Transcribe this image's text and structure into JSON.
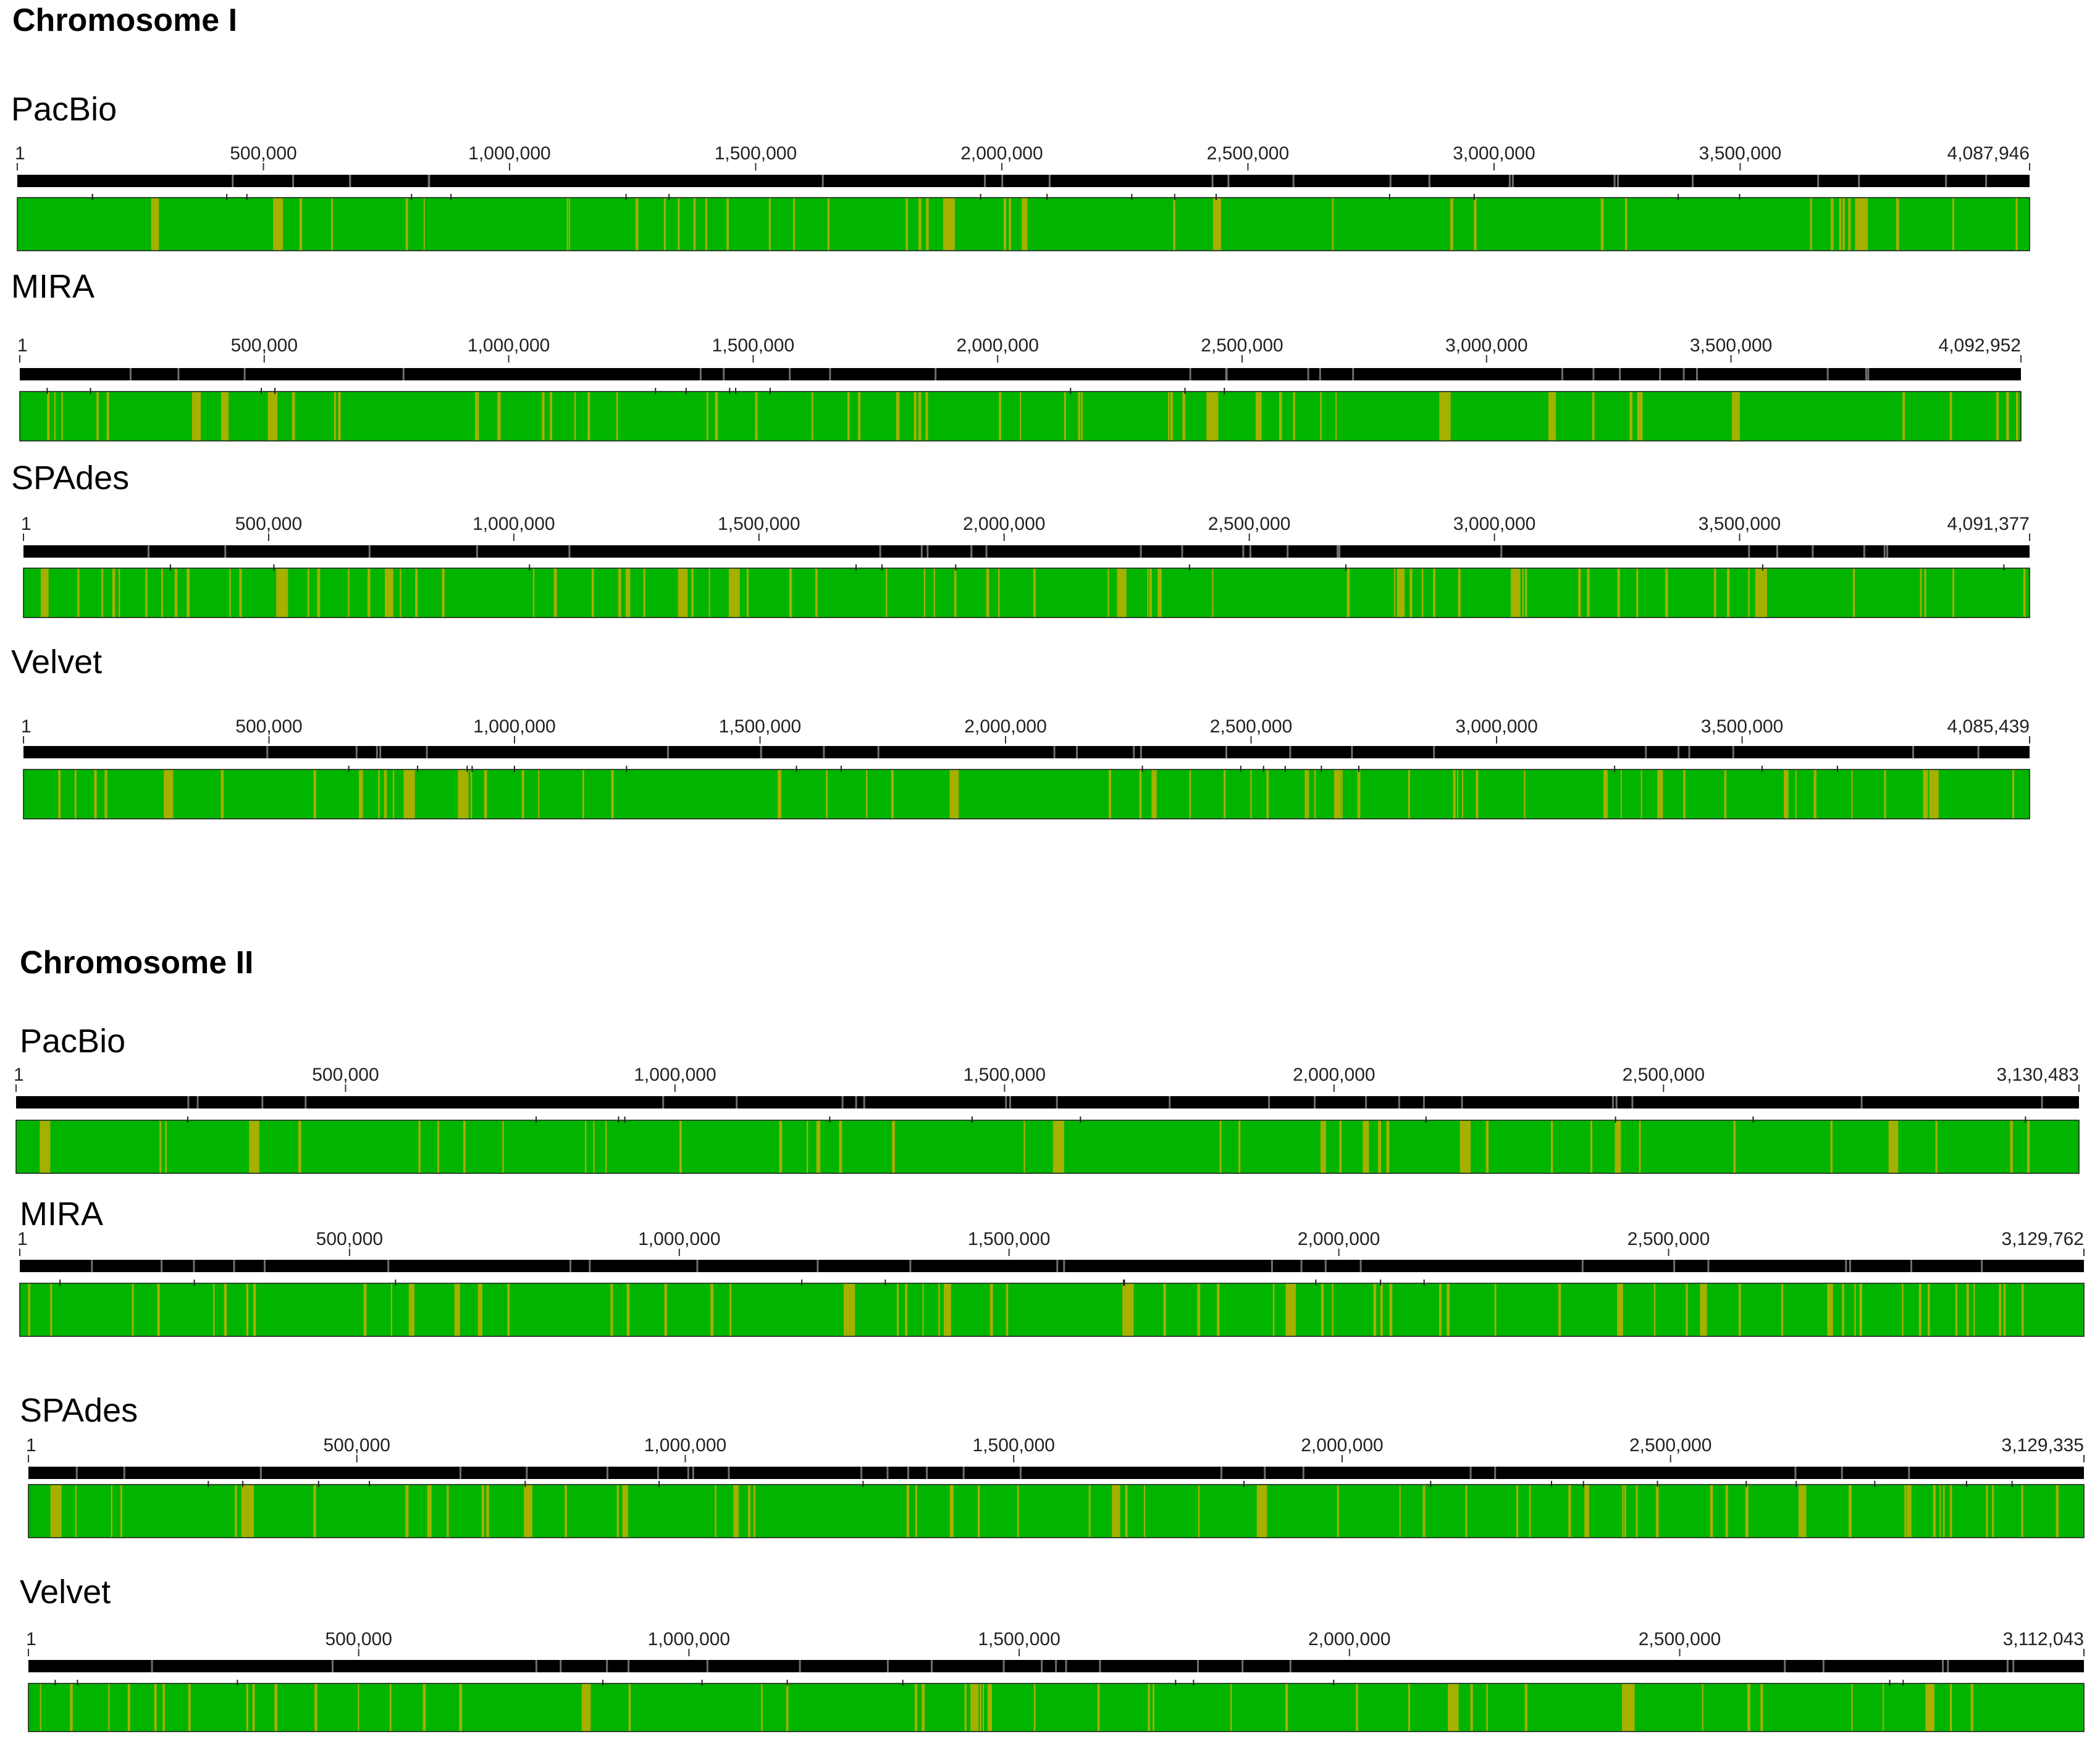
{
  "colors": {
    "background": "#ffffff",
    "ruler": "#000000",
    "gap_mark": "#6e6e6e",
    "similarity_high": "#00b400",
    "similarity_low": "#a5b000",
    "block_outline": "#1a1a1a"
  },
  "panels": [
    {
      "title": "Chromosome I",
      "tracks": [
        {
          "name": "PacBio",
          "length": 4087946,
          "tick_labels": [
            "1",
            "500,000",
            "1,000,000",
            "1,500,000",
            "2,000,000",
            "2,500,000",
            "3,000,000",
            "3,500,000",
            "4,087,946"
          ],
          "tick_values": [
            1,
            500000,
            1000000,
            1500000,
            2000000,
            2500000,
            3000000,
            3500000,
            4087946
          ]
        },
        {
          "name": "MIRA",
          "length": 4092952,
          "tick_labels": [
            "1",
            "500,000",
            "1,000,000",
            "1,500,000",
            "2,000,000",
            "2,500,000",
            "3,000,000",
            "3,500,000",
            "4,092,952"
          ],
          "tick_values": [
            1,
            500000,
            1000000,
            1500000,
            2000000,
            2500000,
            3000000,
            3500000,
            4092952
          ]
        },
        {
          "name": "SPAdes",
          "length": 4091377,
          "tick_labels": [
            "1",
            "500,000",
            "1,000,000",
            "1,500,000",
            "2,000,000",
            "2,500,000",
            "3,000,000",
            "3,500,000",
            "4,091,377"
          ],
          "tick_values": [
            1,
            500000,
            1000000,
            1500000,
            2000000,
            2500000,
            3000000,
            3500000,
            4091377
          ]
        },
        {
          "name": "Velvet",
          "length": 4085439,
          "tick_labels": [
            "1",
            "500,000",
            "1,000,000",
            "1,500,000",
            "2,000,000",
            "2,500,000",
            "3,000,000",
            "3,500,000",
            "4,085,439"
          ],
          "tick_values": [
            1,
            500000,
            1000000,
            1500000,
            2000000,
            2500000,
            3000000,
            3500000,
            4085439
          ]
        }
      ]
    },
    {
      "title": "Chromosome II",
      "tracks": [
        {
          "name": "PacBio",
          "length": 3130483,
          "tick_labels": [
            "1",
            "500,000",
            "1,000,000",
            "1,500,000",
            "2,000,000",
            "2,500,000",
            "3,130,483"
          ],
          "tick_values": [
            1,
            500000,
            1000000,
            1500000,
            2000000,
            2500000,
            3130483
          ]
        },
        {
          "name": "MIRA",
          "length": 3129762,
          "tick_labels": [
            "1",
            "500,000",
            "1,000,000",
            "1,500,000",
            "2,000,000",
            "2,500,000",
            "3,129,762"
          ],
          "tick_values": [
            1,
            500000,
            1000000,
            1500000,
            2000000,
            2500000,
            3129762
          ]
        },
        {
          "name": "SPAdes",
          "length": 3129335,
          "tick_labels": [
            "1",
            "500,000",
            "1,000,000",
            "1,500,000",
            "2,000,000",
            "2,500,000",
            "3,129,335"
          ],
          "tick_values": [
            1,
            500000,
            1000000,
            1500000,
            2000000,
            2500000,
            3129335
          ]
        },
        {
          "name": "Velvet",
          "length": 3112043,
          "tick_labels": [
            "1",
            "500,000",
            "1,000,000",
            "1,500,000",
            "2,000,000",
            "2,500,000",
            "3,112,043"
          ],
          "tick_values": [
            1,
            500000,
            1000000,
            1500000,
            2000000,
            2500000,
            3112043
          ]
        }
      ]
    }
  ]
}
